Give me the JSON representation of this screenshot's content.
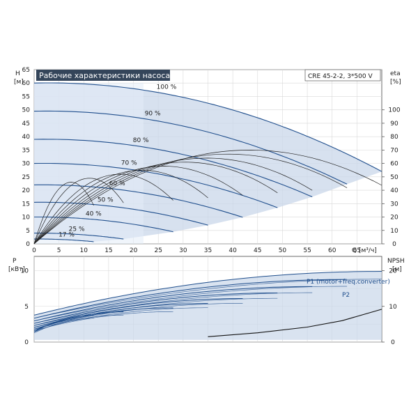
{
  "chart_data": [
    {
      "type": "line",
      "title": "Рабочие характеристики насоса",
      "model": "CRE 45-2-2, 3*500 V",
      "ylabel": "H",
      "yunit": "[м]",
      "xlabel": "Q",
      "xunit": "[м³/ч]",
      "xlim": [
        0,
        70
      ],
      "ylim": [
        0,
        65
      ],
      "xticks": [
        0,
        5,
        10,
        15,
        20,
        25,
        30,
        35,
        40,
        45,
        50,
        55,
        60,
        65
      ],
      "yticks": [
        0,
        5,
        10,
        15,
        20,
        25,
        30,
        35,
        40,
        45,
        50,
        55,
        60,
        65
      ],
      "y2label": "eta",
      "y2unit": "[%]",
      "y2lim": [
        0,
        130
      ],
      "y2ticks": [
        0,
        10,
        20,
        30,
        40,
        50,
        60,
        70,
        80,
        90,
        100
      ],
      "speed_curves": [
        {
          "name": "100 %",
          "q_max": 70,
          "h0": 60
        },
        {
          "name": "90 %",
          "q_max": 63,
          "h0": 49.5
        },
        {
          "name": "80 %",
          "q_max": 56,
          "h0": 39
        },
        {
          "name": "70 %",
          "q_max": 49,
          "h0": 30
        },
        {
          "name": "60 %",
          "q_max": 42,
          "h0": 22
        },
        {
          "name": "50 %",
          "q_max": 35,
          "h0": 15.5
        },
        {
          "name": "40 %",
          "q_max": 28,
          "h0": 10
        },
        {
          "name": "25 %",
          "q_max": 18,
          "h0": 4
        },
        {
          "name": "17 %",
          "q_max": 12,
          "h0": 1.8
        }
      ]
    },
    {
      "type": "line",
      "ylabel": "P",
      "yunit": "[кВт]",
      "xlim": [
        0,
        70
      ],
      "ylim": [
        0,
        12
      ],
      "yticks": [
        0,
        5,
        10
      ],
      "y2label": "NPSH",
      "y2unit": "[м]",
      "y2lim": [
        0,
        24
      ],
      "y2ticks": [
        0,
        10,
        20
      ],
      "series": [
        {
          "name": "P1 (motor+freq.converter)",
          "q_max": 70,
          "p0": 3.8,
          "p_end": 9.9
        },
        {
          "name": "P2",
          "q_max": 70,
          "p0": 3.2,
          "p_end": 8.8
        }
      ],
      "npsh": {
        "x": [
          35,
          45,
          55,
          62,
          70
        ],
        "y": [
          1.5,
          2.6,
          4.2,
          6.0,
          9.2
        ]
      }
    }
  ],
  "colors": {
    "curve": "#1f4e8c",
    "band": "#c9d7ea",
    "light": "#e3ecf7",
    "title_bg": "#34455a"
  }
}
